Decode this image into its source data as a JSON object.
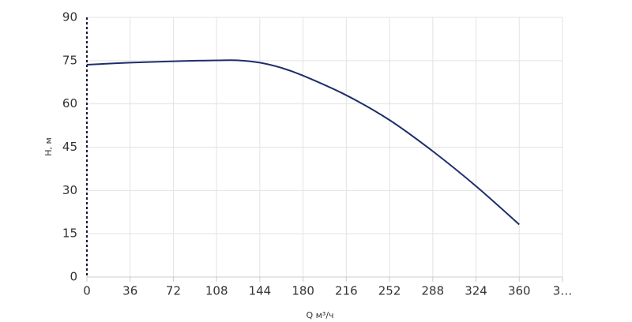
{
  "chart_data": {
    "type": "line",
    "x_label": "Q м³/ч",
    "y_label": "H, м",
    "x": [
      0,
      36,
      72,
      108,
      126,
      144,
      162,
      180,
      216,
      252,
      288,
      324,
      360
    ],
    "series": [
      {
        "color": "#1f2d6b",
        "values": [
          73.6,
          74.3,
          74.8,
          75.1,
          75.1,
          74.3,
          72.5,
          69.8,
          63.0,
          54.4,
          43.6,
          31.5,
          18.2
        ]
      }
    ],
    "xlim": [
      0,
      396
    ],
    "xticks": [
      0,
      36,
      72,
      108,
      144,
      180,
      216,
      252,
      288,
      324,
      360,
      {
        "value": 396,
        "label": "3…"
      }
    ],
    "ylim": [
      0,
      90
    ],
    "yticks": [
      0,
      15,
      30,
      45,
      60,
      75,
      90
    ],
    "grid": true
  }
}
